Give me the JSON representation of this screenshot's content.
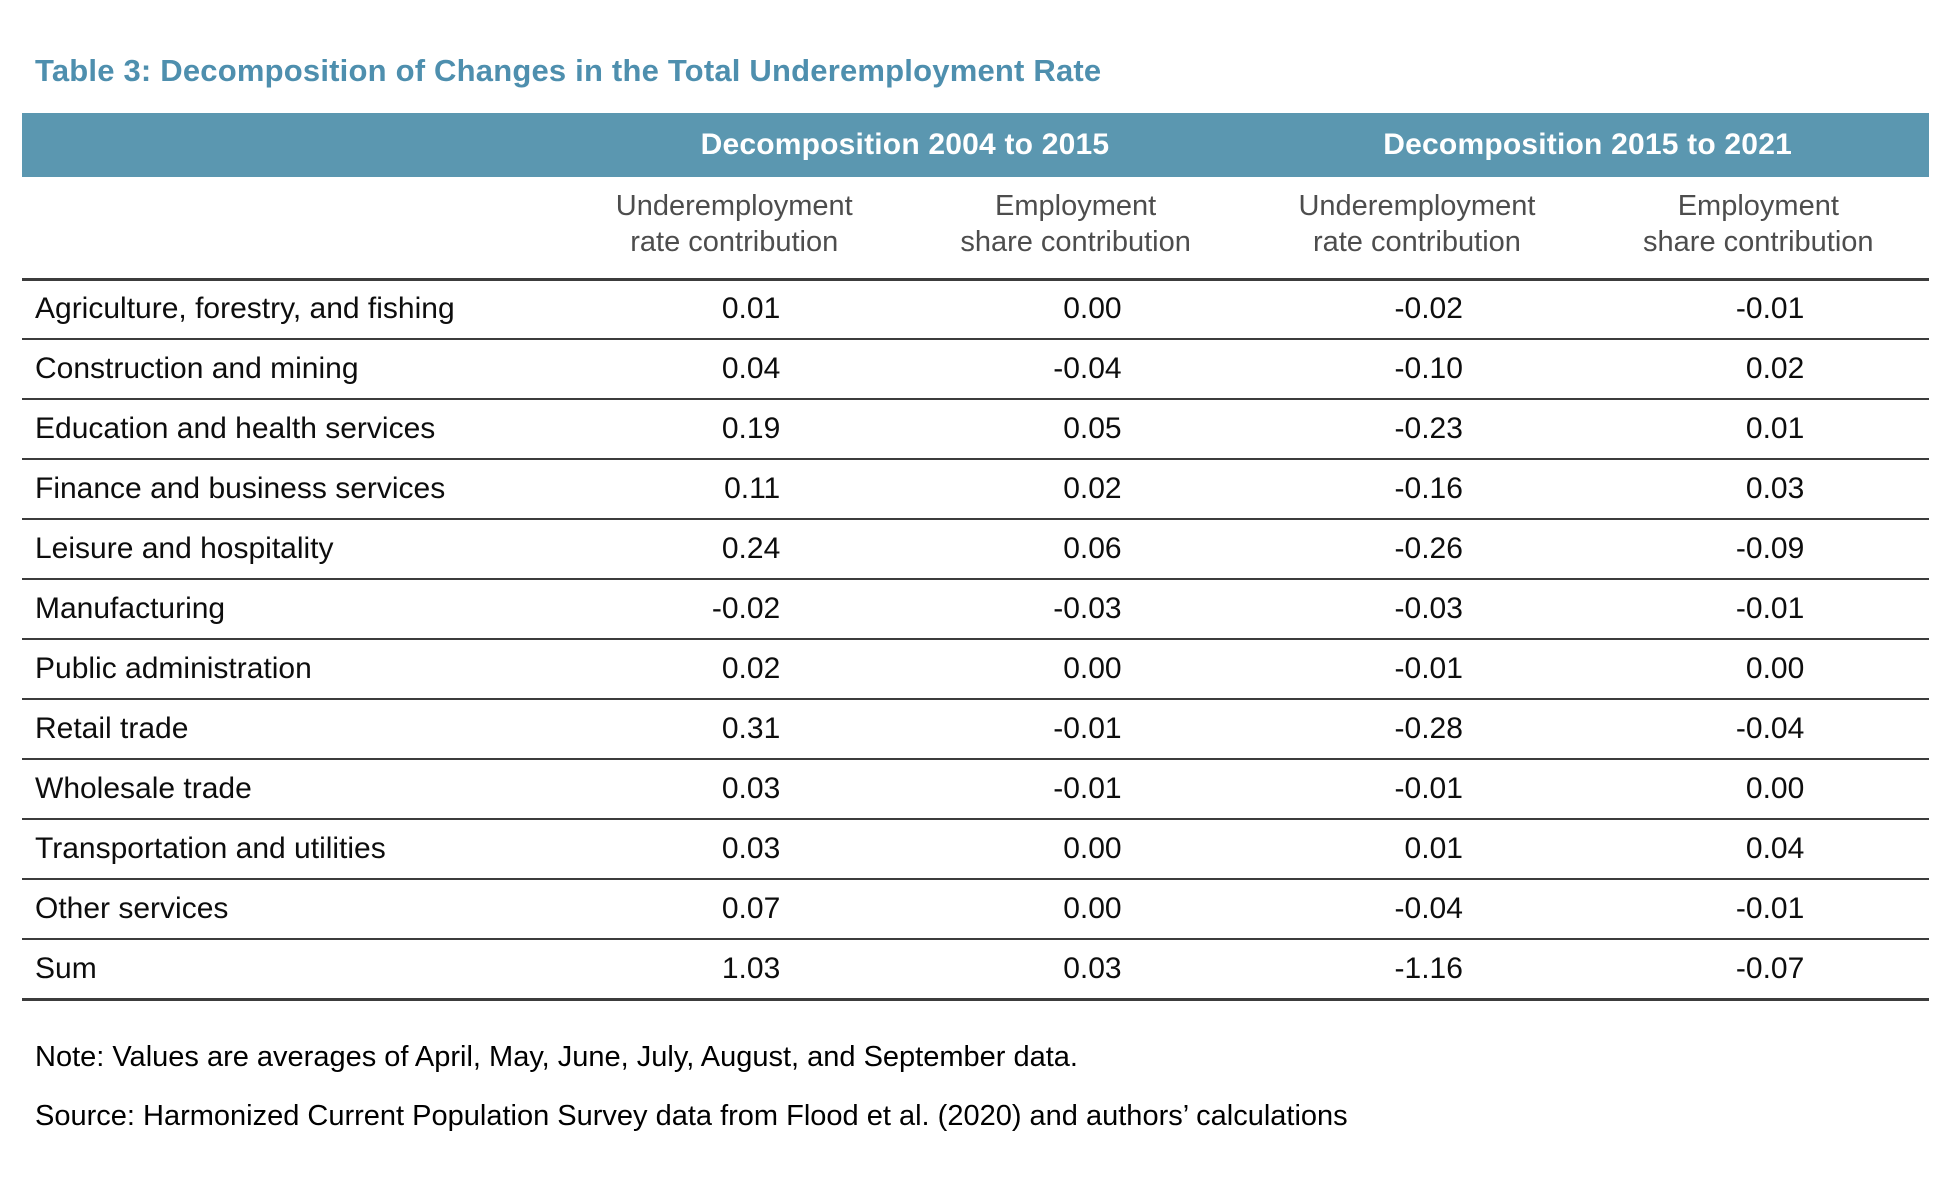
{
  "title": "Table 3: Decomposition of Changes in the Total Underemployment Rate",
  "colors": {
    "band_background": "#5B97B0",
    "title_text": "#4E8FAE",
    "subheader_text": "#4D4D4D",
    "rule_lines": "#3C3C3C"
  },
  "table": {
    "group_headers": [
      {
        "label": "Decomposition 2004 to 2015"
      },
      {
        "label": "Decomposition 2015 to 2021"
      }
    ],
    "column_headers": [
      {
        "line1": "Underemployment",
        "line2": "rate contribution"
      },
      {
        "line1": "Employment",
        "line2": "share contribution"
      },
      {
        "line1": "Underemployment",
        "line2": "rate contribution"
      },
      {
        "line1": "Employment",
        "line2": "share contribution"
      }
    ],
    "rows": [
      {
        "label": "Agriculture, forestry, and fishing",
        "values": [
          "0.01",
          "0.00",
          "-0.02",
          "-0.01"
        ]
      },
      {
        "label": "Construction and mining",
        "values": [
          "0.04",
          "-0.04",
          "-0.10",
          "0.02"
        ]
      },
      {
        "label": "Education and health services",
        "values": [
          "0.19",
          "0.05",
          "-0.23",
          "0.01"
        ]
      },
      {
        "label": "Finance and business services",
        "values": [
          "0.11",
          "0.02",
          "-0.16",
          "0.03"
        ]
      },
      {
        "label": "Leisure and hospitality",
        "values": [
          "0.24",
          "0.06",
          "-0.26",
          "-0.09"
        ]
      },
      {
        "label": "Manufacturing",
        "values": [
          "-0.02",
          "-0.03",
          "-0.03",
          "-0.01"
        ]
      },
      {
        "label": "Public administration",
        "values": [
          "0.02",
          "0.00",
          "-0.01",
          "0.00"
        ]
      },
      {
        "label": "Retail trade",
        "values": [
          "0.31",
          "-0.01",
          "-0.28",
          "-0.04"
        ]
      },
      {
        "label": "Wholesale trade",
        "values": [
          "0.03",
          "-0.01",
          "-0.01",
          "0.00"
        ]
      },
      {
        "label": "Transportation and utilities",
        "values": [
          "0.03",
          "0.00",
          "0.01",
          "0.04"
        ]
      },
      {
        "label": "Other services",
        "values": [
          "0.07",
          "0.00",
          "-0.04",
          "-0.01"
        ]
      },
      {
        "label": "Sum",
        "values": [
          "1.03",
          "0.03",
          "-1.16",
          "-0.07"
        ]
      }
    ]
  },
  "note": "Note: Values are averages of April, May, June, July, August, and September data.",
  "source": "Source: Harmonized Current Population Survey data from Flood et al. (2020) and authors’ calculations"
}
